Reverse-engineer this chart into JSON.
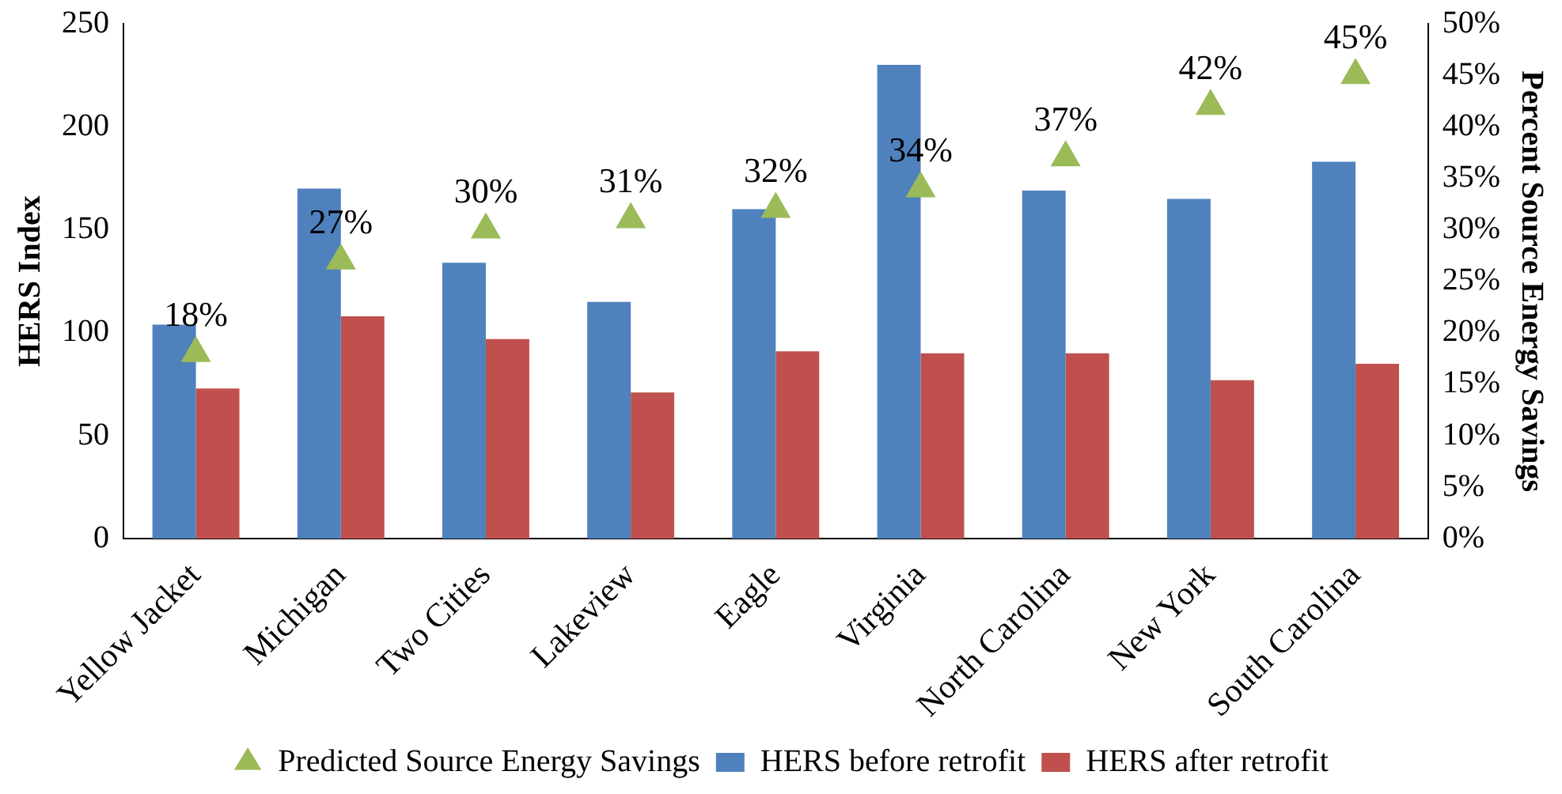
{
  "chart_data": {
    "type": "bar",
    "ylabel": "HERS Index",
    "y2label": "Percent Source Energy Savings",
    "categories": [
      "Yellow Jacket",
      "Michigan",
      "Two Cities",
      "Lakeview",
      "Eagle",
      "Virginia",
      "North Carolina",
      "New York",
      "South Carolina"
    ],
    "series": [
      {
        "name": "HERS before retrofit",
        "color": "#4f81bd",
        "values": [
          104,
          170,
          134,
          115,
          160,
          230,
          169,
          165,
          183
        ]
      },
      {
        "name": "HERS after retrofit",
        "color": "#c0504d",
        "values": [
          73,
          108,
          97,
          71,
          91,
          90,
          90,
          77,
          85
        ]
      },
      {
        "name": "Predicted Source Energy Savings",
        "type": "scatter",
        "axis": "y2",
        "color": "#9bbb59",
        "marker": "triangle",
        "values": [
          18,
          27,
          30,
          31,
          32,
          34,
          37,
          42,
          45
        ],
        "value_labels": [
          "18%",
          "27%",
          "30%",
          "31%",
          "32%",
          "34%",
          "37%",
          "42%",
          "45%"
        ]
      }
    ],
    "ylim": [
      0,
      250
    ],
    "yticks": [
      0,
      50,
      100,
      150,
      200,
      250
    ],
    "y2lim": [
      0,
      50
    ],
    "y2ticks": [
      {
        "value": 0,
        "label": "0%"
      },
      {
        "value": 5,
        "label": "5%"
      },
      {
        "value": 10,
        "label": "10%"
      },
      {
        "value": 15,
        "label": "15%"
      },
      {
        "value": 20,
        "label": "20%"
      },
      {
        "value": 25,
        "label": "25%"
      },
      {
        "value": 30,
        "label": "30%"
      },
      {
        "value": 35,
        "label": "35%"
      },
      {
        "value": 40,
        "label": "40%"
      },
      {
        "value": 45,
        "label": "45%"
      },
      {
        "value": 50,
        "label": "50%"
      }
    ],
    "legend": "bottom",
    "grid": false
  }
}
